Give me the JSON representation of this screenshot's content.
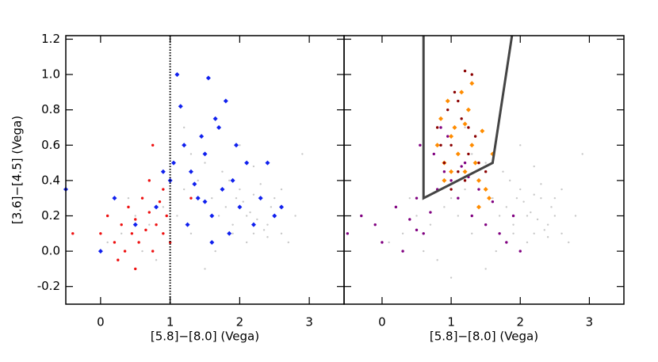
{
  "chart_data": [
    {
      "type": "scatter",
      "xlabel": "[5.8]−[8.0] (Vega)",
      "ylabel": "[3.6]−[4.5] (Vega)",
      "xlim": [
        -0.5,
        3.5
      ],
      "ylim": [
        -0.3,
        1.22
      ],
      "xticks": [
        0,
        1,
        2,
        3
      ],
      "yticks": [
        -0.2,
        {
          "value": 0,
          "label": "0.0"
        },
        0.2,
        0.4,
        0.6,
        0.8,
        {
          "value": 1,
          "label": "1.0"
        },
        1.2
      ],
      "vline": 1,
      "series": [
        {
          "color": "#c8c8c8",
          "marker": "dot",
          "x": [
            0.1,
            0.3,
            0.5,
            0.7,
            0.9,
            1.0,
            1.1,
            1.2,
            1.3,
            1.4,
            1.5,
            1.6,
            1.7,
            1.8,
            1.9,
            2.0,
            2.1,
            2.2,
            2.3,
            2.4,
            2.5,
            2.6,
            2.7,
            1.85,
            1.95,
            2.05,
            2.15,
            2.25,
            2.35,
            2.45,
            1.75,
            1.65,
            2.1,
            2.2,
            2.3,
            2.0,
            1.9,
            2.4,
            2.5,
            0.8,
            0.6,
            1.3,
            1.5,
            2.8,
            2.9,
            1.2,
            1.0,
            0.4,
            2.6,
            2.2
          ],
          "values": [
            0.05,
            0.1,
            0.2,
            0.15,
            0.25,
            0.3,
            0.2,
            0.35,
            0.1,
            0.4,
            0.5,
            0.3,
            0.2,
            0.25,
            0.15,
            0.35,
            0.2,
            0.1,
            0.3,
            0.15,
            0.2,
            0.1,
            0.05,
            0.4,
            0.3,
            0.28,
            0.22,
            0.18,
            0.12,
            0.25,
            0.45,
            0.0,
            0.05,
            0.32,
            0.38,
            0.6,
            0.1,
            0.08,
            0.3,
            -0.05,
            0.0,
            0.55,
            -0.1,
            0.2,
            0.55,
            0.7,
            -0.15,
            0.3,
            0.35,
            0.48
          ]
        },
        {
          "color": "#ee1111",
          "marker": "dot",
          "x": [
            0.0,
            0.1,
            0.2,
            0.3,
            0.35,
            0.4,
            0.45,
            0.5,
            0.55,
            0.6,
            0.65,
            0.7,
            0.75,
            0.8,
            0.85,
            0.9,
            0.95,
            1.0,
            0.25,
            0.5,
            0.7,
            0.9,
            1.3,
            0.75,
            -0.4
          ],
          "values": [
            0.1,
            0.2,
            0.05,
            0.15,
            0.0,
            0.25,
            0.1,
            0.18,
            0.05,
            0.3,
            0.12,
            0.22,
            0.0,
            0.15,
            0.28,
            0.1,
            0.2,
            0.05,
            -0.05,
            -0.1,
            0.4,
            0.35,
            0.3,
            0.6,
            0.1
          ]
        },
        {
          "color": "#1020ee",
          "marker": "diamond",
          "x": [
            0.0,
            -0.5,
            0.2,
            0.5,
            0.8,
            1.0,
            1.1,
            1.15,
            1.2,
            1.3,
            1.4,
            1.5,
            1.55,
            1.6,
            1.7,
            1.75,
            1.8,
            1.9,
            2.0,
            2.1,
            2.2,
            2.3,
            2.4,
            2.5,
            2.6,
            1.25,
            1.45,
            1.65,
            1.85,
            1.35,
            1.05,
            1.6,
            1.95,
            0.9,
            1.5
          ],
          "values": [
            0.0,
            0.35,
            0.3,
            0.15,
            0.25,
            0.4,
            1.0,
            0.82,
            0.6,
            0.45,
            0.3,
            0.55,
            0.98,
            0.2,
            0.7,
            0.35,
            0.85,
            0.4,
            0.25,
            0.5,
            0.15,
            0.3,
            0.5,
            0.2,
            0.25,
            0.15,
            0.65,
            0.75,
            0.1,
            0.38,
            0.5,
            0.05,
            0.6,
            0.45,
            0.28
          ]
        }
      ]
    },
    {
      "type": "scatter",
      "xlabel": "[5.8]−[8.0] (Vega)",
      "xlim": [
        -0.55,
        3.5
      ],
      "ylim": [
        -0.3,
        1.22
      ],
      "xticks": [
        0,
        1,
        2,
        3
      ],
      "region": {
        "x": [
          0.6,
          0.6,
          1.6,
          1.88
        ],
        "y": [
          1.22,
          0.3,
          0.5,
          1.22
        ]
      },
      "series": [
        {
          "color": "#c8c8c8",
          "marker": "dot",
          "x": [
            0.1,
            0.3,
            0.5,
            0.7,
            0.9,
            1.0,
            1.1,
            1.2,
            1.3,
            1.4,
            1.5,
            1.6,
            1.7,
            1.8,
            1.9,
            2.0,
            2.1,
            2.2,
            2.3,
            2.4,
            2.5,
            2.6,
            2.7,
            1.85,
            1.95,
            2.05,
            2.15,
            2.25,
            2.35,
            2.45,
            1.75,
            1.65,
            2.1,
            2.2,
            2.3,
            2.0,
            1.9,
            2.4,
            2.5,
            0.8,
            0.6,
            1.3,
            1.5,
            2.8,
            2.9,
            1.2,
            1.0,
            0.4,
            2.6,
            2.2
          ],
          "values": [
            0.05,
            0.1,
            0.2,
            0.15,
            0.25,
            0.3,
            0.2,
            0.35,
            0.1,
            0.4,
            0.5,
            0.3,
            0.2,
            0.25,
            0.15,
            0.35,
            0.2,
            0.1,
            0.3,
            0.15,
            0.2,
            0.1,
            0.05,
            0.4,
            0.3,
            0.28,
            0.22,
            0.18,
            0.12,
            0.25,
            0.45,
            0.0,
            0.05,
            0.32,
            0.38,
            0.6,
            0.1,
            0.08,
            0.3,
            -0.05,
            0.0,
            0.55,
            -0.1,
            0.2,
            0.55,
            0.7,
            -0.15,
            0.3,
            0.35,
            0.48
          ]
        },
        {
          "color": "#800080",
          "marker": "dot",
          "x": [
            -0.5,
            -0.3,
            -0.1,
            0.0,
            0.2,
            0.3,
            0.4,
            0.5,
            0.6,
            0.7,
            0.8,
            0.9,
            1.0,
            1.1,
            1.2,
            1.3,
            1.4,
            1.5,
            1.6,
            1.7,
            1.8,
            1.9,
            2.0,
            0.55,
            0.75,
            0.95,
            1.15,
            0.85,
            1.25,
            0.5
          ],
          "values": [
            0.1,
            0.2,
            0.15,
            0.05,
            0.25,
            0.0,
            0.18,
            0.3,
            0.1,
            0.22,
            0.35,
            0.45,
            0.4,
            0.3,
            0.5,
            0.2,
            0.35,
            0.15,
            0.28,
            0.1,
            0.05,
            0.2,
            0.0,
            0.6,
            0.55,
            0.65,
            0.48,
            0.7,
            0.42,
            0.12
          ]
        },
        {
          "color": "#ff8c00",
          "marker": "diamond",
          "x": [
            0.8,
            0.85,
            0.9,
            0.95,
            1.0,
            1.05,
            1.1,
            1.15,
            1.2,
            1.25,
            1.3,
            1.35,
            1.4,
            1.45,
            1.5,
            1.55,
            1.6,
            1.0,
            1.2,
            1.3,
            0.9,
            1.4
          ],
          "values": [
            0.6,
            0.75,
            0.5,
            0.85,
            0.65,
            0.7,
            0.55,
            0.9,
            0.45,
            0.8,
            0.6,
            0.5,
            0.4,
            0.68,
            0.35,
            0.3,
            0.55,
            0.45,
            0.72,
            0.95,
            0.4,
            0.25
          ]
        },
        {
          "color": "#8b0000",
          "marker": "dot",
          "x": [
            0.8,
            0.9,
            0.95,
            1.0,
            1.05,
            1.1,
            1.15,
            1.2,
            1.25,
            1.3,
            1.35,
            1.4,
            1.0,
            1.1,
            1.2,
            0.85,
            1.25,
            1.5
          ],
          "values": [
            0.7,
            0.5,
            0.8,
            0.6,
            0.9,
            0.45,
            0.75,
            1.02,
            0.55,
            1.0,
            0.65,
            0.5,
            0.35,
            0.85,
            0.4,
            0.6,
            0.7,
            0.45
          ]
        }
      ]
    }
  ]
}
